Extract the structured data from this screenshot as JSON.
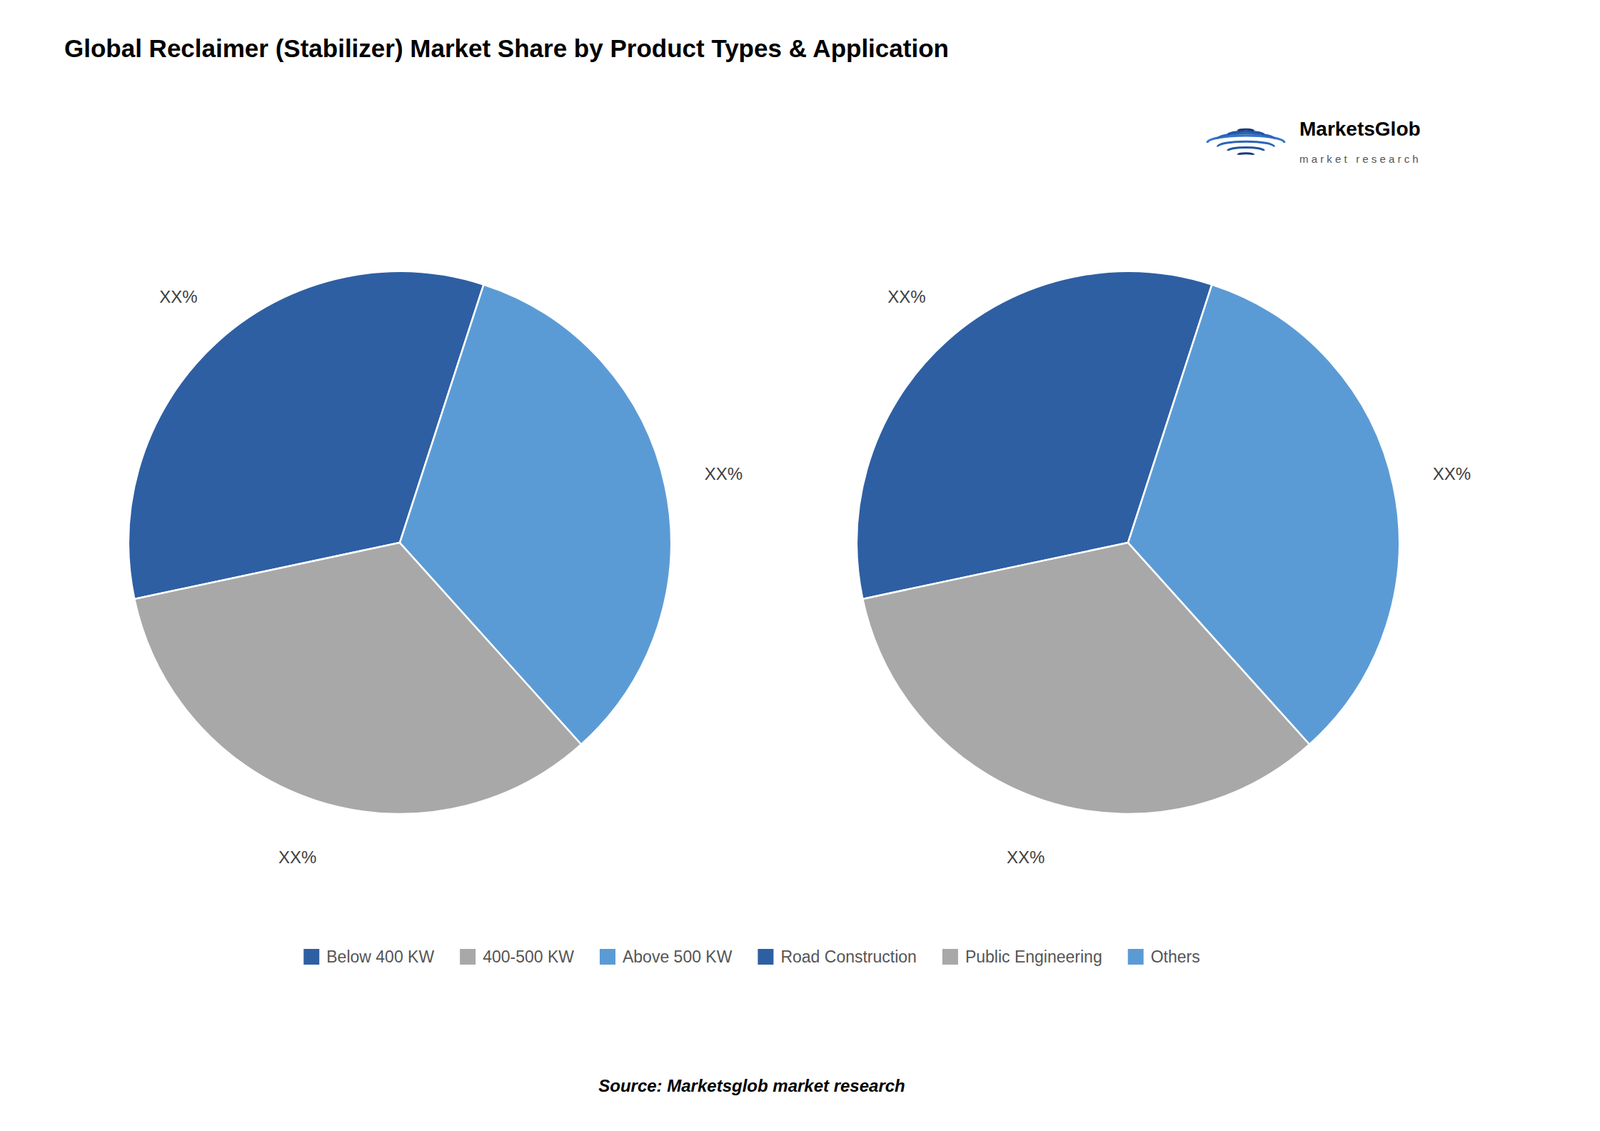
{
  "chart_data": [
    {
      "type": "pie",
      "title": "Global Reclaimer (Stabilizer) Market Share by Product Types & Application",
      "categories": [
        "Below 400 KW",
        "400-500 KW",
        "Above 500 KW"
      ],
      "values": [
        33.33,
        33.33,
        33.34
      ],
      "value_labels": [
        "XX%",
        "XX%",
        "XX%"
      ],
      "colors": [
        "#2E5FA3",
        "#A8A8A8",
        "#5B9BD5"
      ],
      "data_labels": true,
      "legend": "bottom",
      "annotations": [
        "MarketsGlob",
        "m a r k e t   r e s e a r c h",
        "Source: Marketsglob market research"
      ]
    },
    {
      "type": "pie",
      "categories": [
        "Road Construction",
        "Public Engineering",
        "Others"
      ],
      "values": [
        33.33,
        33.33,
        33.34
      ],
      "value_labels": [
        "XX%",
        "XX%",
        "XX%"
      ],
      "colors": [
        "#2E5FA3",
        "#A8A8A8",
        "#5B9BD5"
      ],
      "data_labels": true,
      "legend": "bottom"
    }
  ]
}
